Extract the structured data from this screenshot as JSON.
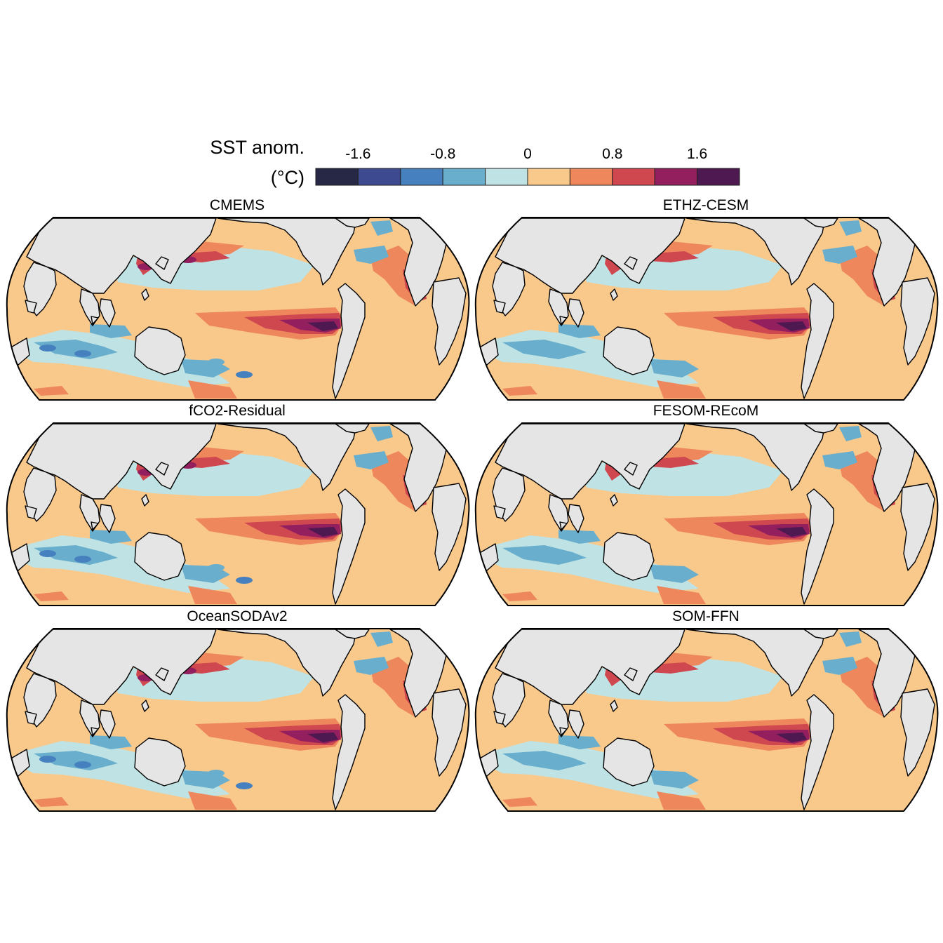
{
  "colorbar": {
    "title_line1": "SST anom.",
    "title_line2": "(°C)",
    "tick_labels": [
      "-1.6",
      "-0.8",
      "0",
      "0.8",
      "1.6"
    ],
    "bins": [
      {
        "range": [
          -2.0,
          -1.6
        ],
        "color": "#262845"
      },
      {
        "range": [
          -1.6,
          -1.2
        ],
        "color": "#3e4a8f"
      },
      {
        "range": [
          -1.2,
          -0.8
        ],
        "color": "#4780be"
      },
      {
        "range": [
          -0.8,
          -0.4
        ],
        "color": "#6aaecd"
      },
      {
        "range": [
          -0.4,
          0.0
        ],
        "color": "#bfe3e4"
      },
      {
        "range": [
          0.0,
          0.4
        ],
        "color": "#f9c88b"
      },
      {
        "range": [
          0.4,
          0.8
        ],
        "color": "#ee875c"
      },
      {
        "range": [
          0.8,
          1.2
        ],
        "color": "#cf4850"
      },
      {
        "range": [
          1.2,
          1.6
        ],
        "color": "#931f5f"
      },
      {
        "range": [
          1.6,
          2.0
        ],
        "color": "#4e1851"
      }
    ]
  },
  "panels": [
    {
      "title": "CMEMS"
    },
    {
      "title": "ETHZ-CESM"
    },
    {
      "title": "fCO2-Residual"
    },
    {
      "title": "FESOM-REcoM"
    },
    {
      "title": "OceanSODAv2"
    },
    {
      "title": "SOM-FFN"
    }
  ],
  "colors": {
    "land": "#e5e5e5",
    "coastline": "#000000"
  }
}
